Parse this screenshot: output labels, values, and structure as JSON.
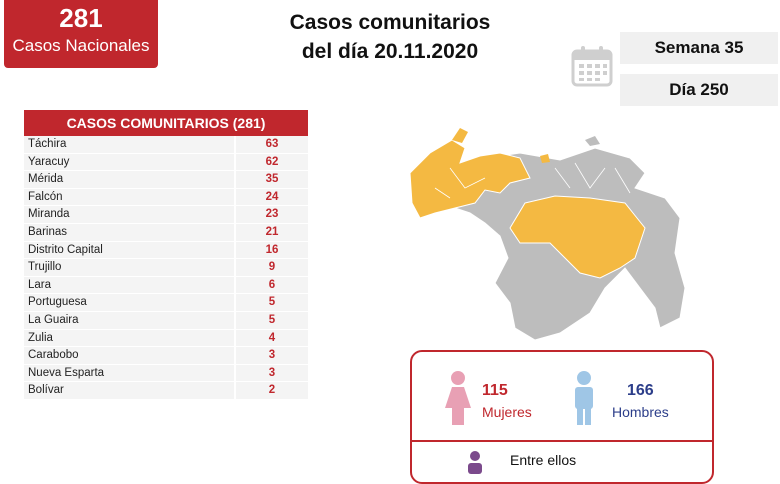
{
  "national": {
    "count": "281",
    "label": "Casos Nacionales"
  },
  "title": {
    "line1": "Casos comunitarios",
    "line2": "del día 20.11.2020"
  },
  "week": "Semana 35",
  "day": "Día 250",
  "table": {
    "header": "CASOS COMUNITARIOS (281)",
    "rows": [
      {
        "name": "Táchira",
        "value": "63"
      },
      {
        "name": "Yaracuy",
        "value": "62"
      },
      {
        "name": "Mérida",
        "value": "35"
      },
      {
        "name": "Falcón",
        "value": "24"
      },
      {
        "name": "Miranda",
        "value": "23"
      },
      {
        "name": "Barinas",
        "value": "21"
      },
      {
        "name": "Distrito Capital",
        "value": "16"
      },
      {
        "name": "Trujillo",
        "value": "9"
      },
      {
        "name": "Lara",
        "value": "6"
      },
      {
        "name": "Portuguesa",
        "value": "5"
      },
      {
        "name": "La Guaira",
        "value": "5"
      },
      {
        "name": "Zulia",
        "value": "4"
      },
      {
        "name": "Carabobo",
        "value": "3"
      },
      {
        "name": "Nueva Esparta",
        "value": "3"
      },
      {
        "name": "Bolívar",
        "value": "2"
      }
    ]
  },
  "gender": {
    "women_count": "115",
    "women_label": "Mujeres",
    "men_count": "166",
    "men_label": "Hombres",
    "entre": "Entre ellos"
  },
  "colors": {
    "brand_red": "#c0272d",
    "map_highlight": "#f4b942",
    "map_gray": "#bdbdbd",
    "women_pink": "#e8a0b4",
    "men_blue": "#9fc6e6"
  }
}
